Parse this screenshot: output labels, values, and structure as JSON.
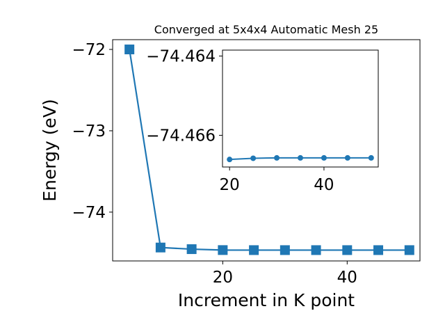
{
  "chart_data": [
    {
      "type": "line",
      "title": "Converged at 5x4x4 Automatic Mesh 25",
      "xlabel": "Increment in K point",
      "ylabel": "Energy (eV)",
      "xlim": [
        2.3,
        51.7
      ],
      "ylim": [
        -74.6,
        -71.88
      ],
      "x": [
        5,
        10,
        15,
        20,
        25,
        30,
        35,
        40,
        45,
        50
      ],
      "series": [
        {
          "values": [
            -72.0,
            -74.435,
            -74.455,
            -74.4664,
            -74.4669,
            -74.4669,
            -74.4669,
            -74.4669,
            -74.4669,
            -74.4669
          ],
          "color": "#1f77b4",
          "marker": "square"
        }
      ],
      "xticks": [
        20,
        40
      ],
      "xtick_labels": [
        "20",
        "40"
      ],
      "yticks": [
        -72,
        -73,
        -74
      ],
      "ytick_labels": [
        "−72",
        "−73",
        "−74"
      ],
      "grid": false
    },
    {
      "type": "line",
      "title": "",
      "xlabel": "",
      "ylabel": "",
      "xlim": [
        18.5,
        51.5
      ],
      "ylim": [
        -74.4668,
        -74.46385
      ],
      "x": [
        20,
        25,
        30,
        35,
        40,
        45,
        50
      ],
      "series": [
        {
          "values": [
            -74.46661,
            -74.46658,
            -74.46657,
            -74.46657,
            -74.46657,
            -74.46657,
            -74.46657
          ],
          "color": "#1f77b4",
          "marker": "circle"
        }
      ],
      "xticks": [
        20,
        40
      ],
      "xtick_labels": [
        "20",
        "40"
      ],
      "yticks": [
        -74.466,
        -74.464
      ],
      "ytick_labels": [
        "−74.466",
        "−74.464"
      ],
      "grid": false
    }
  ]
}
